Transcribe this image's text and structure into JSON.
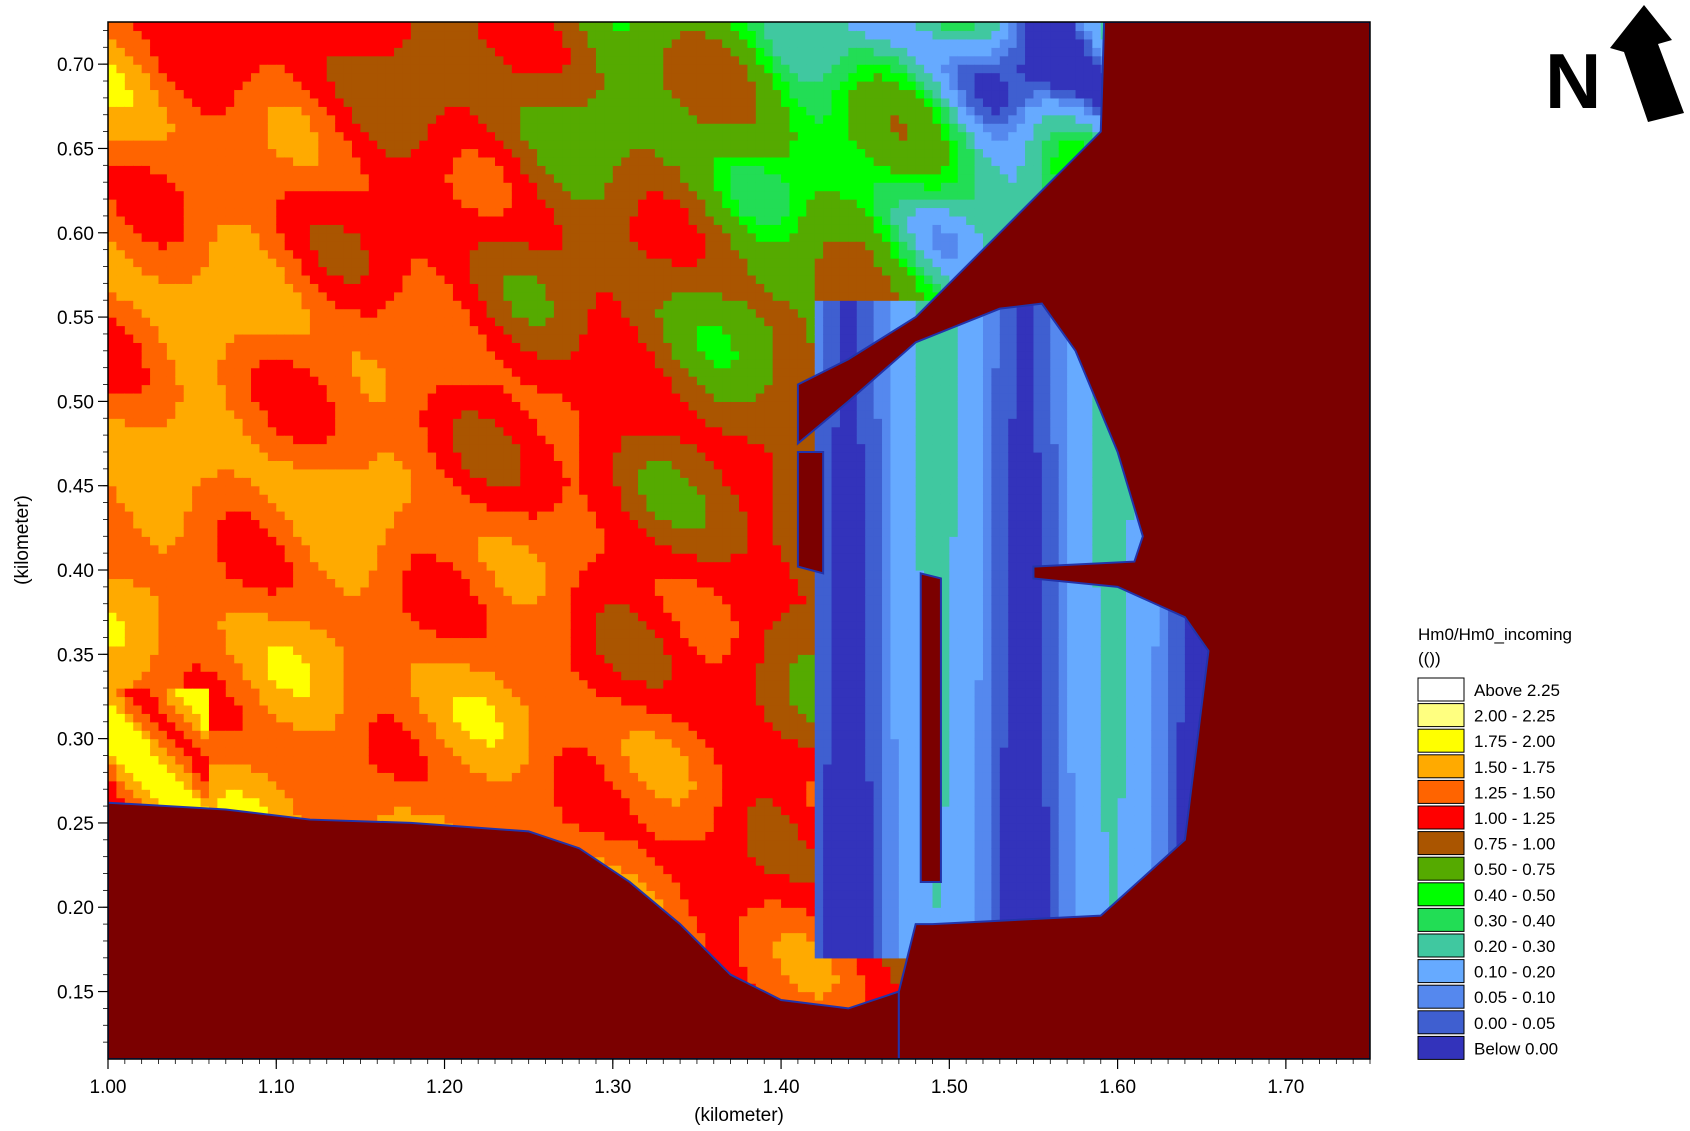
{
  "chart_data": {
    "type": "heatmap",
    "title": "",
    "xlabel": "(kilometer)",
    "ylabel": "(kilometer)",
    "xlim": [
      1.0,
      1.75
    ],
    "ylim": [
      0.11,
      0.725
    ],
    "x_ticks": [
      1.0,
      1.1,
      1.2,
      1.3,
      1.4,
      1.5,
      1.6,
      1.7
    ],
    "x_tick_labels": [
      "1.00",
      "1.10",
      "1.20",
      "1.30",
      "1.40",
      "1.50",
      "1.60",
      "1.70"
    ],
    "y_ticks": [
      0.15,
      0.2,
      0.25,
      0.3,
      0.35,
      0.4,
      0.45,
      0.5,
      0.55,
      0.6,
      0.65,
      0.7
    ],
    "y_tick_labels": [
      "0.15",
      "0.20",
      "0.25",
      "0.30",
      "0.35",
      "0.40",
      "0.45",
      "0.50",
      "0.55",
      "0.60",
      "0.65",
      "0.70"
    ],
    "colorbar": {
      "title_line1": "Hm0/Hm0_incoming",
      "title_line2": "(())",
      "entries": [
        {
          "label": "Above 2.25",
          "color": "#ffffff"
        },
        {
          "label": "2.00 - 2.25",
          "color": "#ffff80"
        },
        {
          "label": "1.75 - 2.00",
          "color": "#ffff00"
        },
        {
          "label": "1.50 - 1.75",
          "color": "#ffaa00"
        },
        {
          "label": "1.25 - 1.50",
          "color": "#ff6400"
        },
        {
          "label": "1.00 - 1.25",
          "color": "#ff0000"
        },
        {
          "label": "0.75 - 1.00",
          "color": "#aa5500"
        },
        {
          "label": "0.50 - 0.75",
          "color": "#55aa00"
        },
        {
          "label": "0.40 - 0.50",
          "color": "#00ff00"
        },
        {
          "label": "0.30 - 0.40",
          "color": "#22dd55"
        },
        {
          "label": "0.20 - 0.30",
          "color": "#40c8a0"
        },
        {
          "label": "0.10 - 0.20",
          "color": "#66aaff"
        },
        {
          "label": "0.05 - 0.10",
          "color": "#5588ee"
        },
        {
          "label": "0.00 - 0.05",
          "color": "#3f5fd0"
        },
        {
          "label": "Below 0.00",
          "color": "#3333bb"
        }
      ]
    },
    "land_color": "#7b0000",
    "north_arrow": {
      "label": "N"
    }
  }
}
